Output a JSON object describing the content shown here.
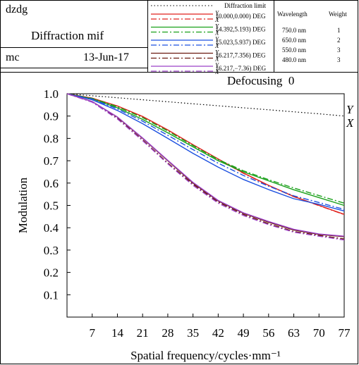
{
  "header": {
    "project": "dzdg",
    "title": "Diffraction mif",
    "user": "mc",
    "date": "13-Jun-17",
    "defocusing_label": "Defocusing",
    "defocusing_value": "0"
  },
  "legend": {
    "diffraction_label": "Diffraction limit",
    "entries": [
      {
        "field": "(0.000,0.000) DEG",
        "color": "#e0201c"
      },
      {
        "field": "(4.392,5.193) DEG",
        "color": "#1aa01a"
      },
      {
        "field": "(5.023,5.937) DEG",
        "color": "#1c50e0"
      },
      {
        "field": "(6.217,7.356) DEG",
        "color": "#6b1a10"
      },
      {
        "field": "(6.217,−7.36) DEG",
        "color": "#9b40c8"
      }
    ],
    "y_label": "Y",
    "x_label": "X"
  },
  "wavelengths": {
    "header_wavelength": "Wavelength",
    "header_weight": "Weight",
    "rows": [
      {
        "wavelength": "750.0 nm",
        "weight": "1"
      },
      {
        "wavelength": "650.0 nm",
        "weight": "2"
      },
      {
        "wavelength": "550.0 nm",
        "weight": "3"
      },
      {
        "wavelength": "480.0 nm",
        "weight": "3"
      }
    ]
  },
  "chart_data": {
    "type": "line",
    "xlabel": "Spatial frequency/cycles·mm⁻¹",
    "ylabel": "Modulation",
    "xlim": [
      0,
      77
    ],
    "ylim": [
      0,
      1.0
    ],
    "xticks": [
      7,
      14,
      21,
      28,
      35,
      42,
      49,
      56,
      63,
      70,
      77
    ],
    "yticks": [
      0.1,
      0.2,
      0.3,
      0.4,
      0.5,
      0.6,
      0.7,
      0.8,
      0.9,
      1.0
    ],
    "curve_labels": [
      "Y",
      "X"
    ],
    "x": [
      0,
      7,
      14,
      21,
      28,
      35,
      42,
      49,
      56,
      63,
      70,
      77
    ],
    "series": [
      {
        "name": "Diffraction limit",
        "color": "#000000",
        "dash": "dotted",
        "values": [
          1.0,
          0.991,
          0.982,
          0.973,
          0.964,
          0.955,
          0.946,
          0.937,
          0.928,
          0.919,
          0.91,
          0.9
        ]
      },
      {
        "name": "(0.000,0.000) DEG Y",
        "color": "#e0201c",
        "dash": "solid",
        "values": [
          1.0,
          0.98,
          0.945,
          0.898,
          0.838,
          0.772,
          0.708,
          0.645,
          0.59,
          0.54,
          0.5,
          0.46
        ]
      },
      {
        "name": "(0.000,0.000) DEG X",
        "color": "#e0201c",
        "dash": "dashdot",
        "values": [
          1.0,
          0.98,
          0.944,
          0.897,
          0.837,
          0.771,
          0.707,
          0.644,
          0.589,
          0.539,
          0.499,
          0.459
        ]
      },
      {
        "name": "(4.392,5.193) DEG Y",
        "color": "#1aa01a",
        "dash": "solid",
        "values": [
          1.0,
          0.977,
          0.937,
          0.885,
          0.825,
          0.762,
          0.7,
          0.65,
          0.61,
          0.57,
          0.535,
          0.5
        ]
      },
      {
        "name": "(4.392,5.193) DEG X",
        "color": "#1aa01a",
        "dash": "dashdot",
        "values": [
          1.0,
          0.979,
          0.942,
          0.893,
          0.833,
          0.768,
          0.705,
          0.655,
          0.615,
          0.578,
          0.544,
          0.51
        ]
      },
      {
        "name": "(5.023,5.937) DEG Y",
        "color": "#1c50e0",
        "dash": "solid",
        "values": [
          1.0,
          0.973,
          0.925,
          0.866,
          0.8,
          0.733,
          0.671,
          0.616,
          0.571,
          0.53,
          0.505,
          0.475
        ]
      },
      {
        "name": "(5.023,5.937) DEG X",
        "color": "#1c50e0",
        "dash": "dashdot",
        "values": [
          1.0,
          0.976,
          0.932,
          0.877,
          0.814,
          0.75,
          0.689,
          0.634,
          0.586,
          0.543,
          0.513,
          0.482
        ]
      },
      {
        "name": "(6.217,7.356) DEG Y",
        "color": "#6b1a10",
        "dash": "solid",
        "values": [
          1.0,
          0.965,
          0.895,
          0.8,
          0.7,
          0.6,
          0.52,
          0.465,
          0.425,
          0.39,
          0.37,
          0.36
        ]
      },
      {
        "name": "(6.217,7.356) DEG X",
        "color": "#6b1a10",
        "dash": "dashdot",
        "values": [
          1.0,
          0.963,
          0.89,
          0.793,
          0.69,
          0.595,
          0.515,
          0.46,
          0.418,
          0.383,
          0.366,
          0.35
        ]
      },
      {
        "name": "(6.217,−7.36) DEG Y",
        "color": "#9b40c8",
        "dash": "solid",
        "values": [
          1.0,
          0.965,
          0.896,
          0.802,
          0.702,
          0.603,
          0.522,
          0.467,
          0.428,
          0.393,
          0.372,
          0.362
        ]
      },
      {
        "name": "(6.217,−7.36) DEG X",
        "color": "#9b40c8",
        "dash": "dashdot",
        "values": [
          1.0,
          0.962,
          0.887,
          0.79,
          0.686,
          0.59,
          0.51,
          0.455,
          0.414,
          0.38,
          0.362,
          0.345
        ]
      }
    ]
  }
}
